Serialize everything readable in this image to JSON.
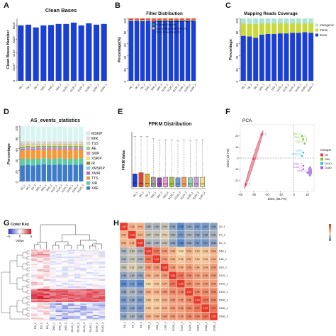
{
  "chart_data": [
    {
      "panel": "A",
      "type": "bar",
      "title": "Clean Bases",
      "ylabel": "Clean Bases Number",
      "ytick_labels": [
        "0",
        "2x10⁷",
        "4x10⁷",
        "6x10⁷",
        "8x10⁷"
      ],
      "ytick_values": [
        0,
        20000000.0,
        40000000.0,
        60000000.0,
        80000000.0
      ],
      "ylim": [
        0,
        90000000.0
      ],
      "categories": [
        "D0_1",
        "D0_2",
        "D0_3",
        "D60_1",
        "D60_2",
        "D60_3",
        "D120_1",
        "D120_2",
        "D120_3",
        "D180_1",
        "D180_2",
        "D180_3"
      ],
      "values": [
        80000000.0,
        81000000.0,
        77000000.0,
        80000000.0,
        80500000.0,
        82000000.0,
        82000000.0,
        84000000.0,
        80000000.0,
        83000000.0,
        81000000.0,
        82000000.0
      ],
      "color": "#1a3fd4"
    },
    {
      "panel": "B",
      "type": "bar",
      "stacked": true,
      "title": "Filter Distribution",
      "ylabel": "Percentage(%)",
      "ytick_labels": [
        "0",
        "20",
        "40",
        "60",
        "80",
        "100"
      ],
      "ytick_values": [
        0,
        20,
        40,
        60,
        80,
        100
      ],
      "ylim": [
        0,
        100
      ],
      "categories": [
        "D0_1",
        "D0_2",
        "D0_3",
        "D60_1",
        "D60_2",
        "D60_3",
        "D120_1",
        "D120_2",
        "D120_3",
        "D180_1",
        "D180_2",
        "D180_3"
      ],
      "series": [
        {
          "name": "Clean Reads Rate(%)",
          "color": "#1a3fd4",
          "values": [
            96.5,
            96.8,
            96.2,
            96.7,
            96.9,
            96.6,
            96.8,
            96.5,
            96.9,
            96.7,
            96.6,
            96.8
          ]
        },
        {
          "name": "Low-quality Reads Rate(%)",
          "color": "#f5d442",
          "values": [
            1.2,
            1.1,
            1.3,
            1.1,
            1.0,
            1.2,
            1.1,
            1.2,
            1.0,
            1.1,
            1.2,
            1.1
          ]
        },
        {
          "name": "N Reads Rate(%)",
          "color": "#2e9a3a",
          "values": [
            0.1,
            0.1,
            0.1,
            0.1,
            0.1,
            0.1,
            0.1,
            0.1,
            0.1,
            0.1,
            0.1,
            0.1
          ]
        },
        {
          "name": "Adapter Polluted Reads Rate(%)",
          "color": "#e0442a",
          "values": [
            2.2,
            2.0,
            2.4,
            2.1,
            2.0,
            2.1,
            2.0,
            2.2,
            2.0,
            2.1,
            2.1,
            2.0
          ]
        }
      ]
    },
    {
      "panel": "C",
      "type": "bar",
      "stacked": true,
      "title": "Mapping Reads Coverage",
      "ylabel": "Percentage",
      "ytick_labels": [
        "0",
        "20",
        "40",
        "60",
        "80",
        "100"
      ],
      "ytick_values": [
        0,
        20,
        40,
        60,
        80,
        100
      ],
      "ylim": [
        0,
        100
      ],
      "categories": [
        "D0_1",
        "D0_2",
        "D0_3",
        "D60_1",
        "D60_2",
        "D60_3",
        "D120_1",
        "D120_2",
        "D120_3",
        "D180_1",
        "D180_2",
        "D180_3"
      ],
      "series": [
        {
          "name": "Exon",
          "color": "#1a3fd4",
          "values": [
            72,
            71,
            69,
            74,
            75,
            75,
            76,
            76,
            77,
            77,
            78,
            77
          ]
        },
        {
          "name": "Intron",
          "color": "#c9d83a",
          "values": [
            20,
            20,
            22,
            18,
            17,
            17,
            16,
            16,
            15,
            15,
            14,
            15
          ]
        },
        {
          "name": "Intergenic",
          "color": "#aee3d6",
          "values": [
            8,
            9,
            9,
            8,
            8,
            8,
            8,
            8,
            8,
            8,
            8,
            8
          ]
        }
      ]
    },
    {
      "panel": "D",
      "type": "bar",
      "stacked": true,
      "title": "AS_events_statistics",
      "ylabel": "Percentage",
      "ytick_labels": [
        "0",
        "20",
        "40",
        "60",
        "80",
        "100"
      ],
      "ytick_values": [
        0,
        20,
        40,
        60,
        80,
        100
      ],
      "ylim": [
        0,
        100
      ],
      "categories": [
        "D0_1",
        "D0_2",
        "D0_3",
        "D60_1",
        "D60_2",
        "D60_3",
        "D120_1",
        "D120_2",
        "D120_3",
        "D180_1",
        "D180_2",
        "D180_3"
      ],
      "series": [
        {
          "name": "XAE",
          "color": "#3d7ac9",
          "values": [
            29,
            30,
            29,
            30,
            31,
            30,
            30,
            31,
            30,
            30,
            30,
            31
          ]
        },
        {
          "name": "XIR",
          "color": "#5fc9a8",
          "values": [
            12,
            11,
            12,
            11,
            11,
            11,
            11,
            11,
            11,
            11,
            11,
            11
          ]
        },
        {
          "name": "TTS",
          "color": "#f59a3a",
          "values": [
            16,
            17,
            16,
            17,
            16,
            17,
            17,
            16,
            17,
            17,
            17,
            16
          ]
        },
        {
          "name": "XMIR",
          "color": "#b56adc",
          "values": [
            2,
            2,
            2,
            2,
            2,
            2,
            2,
            2,
            2,
            2,
            2,
            2
          ]
        },
        {
          "name": "XMSKIP",
          "color": "#7bd1e8",
          "values": [
            2,
            2,
            2,
            2,
            2,
            2,
            2,
            2,
            2,
            2,
            2,
            2
          ]
        },
        {
          "name": "IR",
          "color": "#9a8a2a",
          "values": [
            2,
            2,
            2,
            2,
            2,
            2,
            2,
            2,
            2,
            2,
            2,
            2
          ]
        },
        {
          "name": "XSKIP",
          "color": "#f4e27a",
          "values": [
            2,
            2,
            2,
            2,
            2,
            2,
            2,
            2,
            2,
            2,
            2,
            2
          ]
        },
        {
          "name": "SKIP",
          "color": "#ea8fc0",
          "values": [
            1,
            1,
            1,
            1,
            1,
            1,
            1,
            1,
            1,
            1,
            1,
            1
          ]
        },
        {
          "name": "AE",
          "color": "#8fd97f",
          "values": [
            1,
            1,
            1,
            1,
            1,
            1,
            1,
            1,
            1,
            1,
            1,
            1
          ]
        },
        {
          "name": "TSS",
          "color": "#d2d2d2",
          "values": [
            4,
            4,
            4,
            4,
            4,
            4,
            4,
            4,
            4,
            4,
            4,
            4
          ]
        },
        {
          "name": "MIR",
          "color": "#e7dfd0",
          "values": [
            2,
            2,
            2,
            2,
            2,
            2,
            2,
            2,
            2,
            2,
            2,
            2
          ]
        },
        {
          "name": "MSKIP",
          "color": "#d8f5f3",
          "values": [
            27,
            26,
            27,
            25,
            25,
            25,
            25,
            25,
            25,
            25,
            25,
            25
          ]
        }
      ]
    },
    {
      "panel": "E",
      "type": "box",
      "title": "FPKM Distribution",
      "ylabel": "FPKM Value",
      "categories": [
        "D0_1",
        "D0_2",
        "D0_3",
        "D60_1",
        "D60_2",
        "D60_3",
        "D120_1",
        "D120_2",
        "D120_3",
        "D180_1",
        "D180_2",
        "D180_3"
      ],
      "ylim": [
        0,
        100
      ],
      "boxes": [
        {
          "color": "#1a3fd4",
          "whisker_low": 0,
          "q1": 3,
          "median": 10,
          "q3": 26,
          "whisker_high": 92
        },
        {
          "color": "#e0442a",
          "whisker_low": 0,
          "q1": 3,
          "median": 9,
          "q3": 28,
          "whisker_high": 92
        },
        {
          "color": "#e9a12a",
          "whisker_low": 0,
          "q1": 3,
          "median": 9,
          "q3": 26,
          "whisker_high": 92
        },
        {
          "color": "#a0a0a0",
          "whisker_low": 0,
          "q1": 3,
          "median": 8,
          "q3": 20,
          "whisker_high": 88
        },
        {
          "color": "#8a4ab0",
          "whisker_low": 0,
          "q1": 3,
          "median": 8,
          "q3": 19,
          "whisker_high": 86
        },
        {
          "color": "#e89fcc",
          "whisker_low": 0,
          "q1": 3,
          "median": 8,
          "q3": 20,
          "whisker_high": 86
        },
        {
          "color": "#9fc34a",
          "whisker_low": 0,
          "q1": 3,
          "median": 8,
          "q3": 20,
          "whisker_high": 86
        },
        {
          "color": "#6a9bd8",
          "whisker_low": 0,
          "q1": 3,
          "median": 8,
          "q3": 19,
          "whisker_high": 85
        },
        {
          "color": "#f19a5b",
          "whisker_low": 0,
          "q1": 3,
          "median": 8,
          "q3": 20,
          "whisker_high": 86
        },
        {
          "color": "#8fcfb5",
          "whisker_low": 0,
          "q1": 3,
          "median": 8,
          "q3": 19,
          "whisker_high": 85
        },
        {
          "color": "#c7a0d6",
          "whisker_low": 0,
          "q1": 3,
          "median": 8,
          "q3": 20,
          "whisker_high": 86
        },
        {
          "color": "#f3e28f",
          "whisker_low": 0,
          "q1": 3,
          "median": 8,
          "q3": 20,
          "whisker_high": 86
        }
      ]
    },
    {
      "panel": "F",
      "type": "scatter",
      "title": "PCA",
      "xlabel": "Dim1 (36.7%)",
      "ylabel": "Dim2 (23.7%)",
      "xlim": [
        -40,
        15
      ],
      "ylim": [
        -30,
        30
      ],
      "xtick_values": [
        -40,
        -30,
        -20,
        -10,
        0,
        10
      ],
      "ytick_values": [
        -20,
        -10,
        0,
        10,
        20
      ],
      "legend_title": "Groups",
      "legend_position": "right",
      "groups": [
        {
          "name": "D0",
          "color": "#e03c5a"
        },
        {
          "name": "D60",
          "color": "#7ac23a"
        },
        {
          "name": "D120",
          "color": "#2fc0c0"
        },
        {
          "name": "D180",
          "color": "#a65be0"
        }
      ],
      "points": [
        {
          "label": "D0_1",
          "group": "D0",
          "x": -24,
          "y": 21
        },
        {
          "label": "D0_2",
          "group": "D0",
          "x": -30,
          "y": -1
        },
        {
          "label": "D0_3",
          "group": "D0",
          "x": -36,
          "y": -24
        },
        {
          "label": "D60_3",
          "group": "D60",
          "x": 6,
          "y": 20
        },
        {
          "label": "D60_2",
          "group": "D60",
          "x": 7,
          "y": 17
        },
        {
          "label": "D60_1",
          "group": "D60",
          "x": 8,
          "y": 13
        },
        {
          "label": "D120",
          "group": "D120",
          "x": 7,
          "y": 5
        },
        {
          "label": "D120_3",
          "group": "D120",
          "x": 6,
          "y": 2
        },
        {
          "label": "D180_2",
          "group": "D180",
          "x": 7,
          "y": -7
        },
        {
          "label": "D180_1",
          "group": "D180",
          "x": 7,
          "y": -10
        },
        {
          "label": "D180_3",
          "group": "D180",
          "x": 10,
          "y": -13
        }
      ]
    },
    {
      "panel": "G",
      "type": "heatmap",
      "key_title": "Color Key",
      "key_xlabel": "Value",
      "key_tick_labels": [
        "−5",
        "0",
        "5"
      ],
      "key_tick_values": [
        -5,
        0,
        5
      ],
      "columns": [
        "D0_1",
        "D0_2",
        "D0_3",
        "D60_1",
        "D60_2",
        "D60_3",
        "D120_1",
        "D120_2",
        "D120_3",
        "D180_1",
        "D180_2",
        "D180_3"
      ]
    },
    {
      "panel": "H",
      "type": "heatmap",
      "labels": [
        "D0_1",
        "D0_2",
        "D0_3",
        "D60_1",
        "D60_2",
        "D60_3",
        "D120_1",
        "D120_2",
        "D120_3",
        "D180_1",
        "D180_2",
        "D180_3"
      ],
      "color_scale": [
        "#2b6fd6",
        "#f6d9a8",
        "#e83a2a"
      ],
      "matrix": [
        [
          1.0,
          0.94,
          0.94,
          0.89,
          0.89,
          0.9,
          0.88,
          0.86,
          0.88,
          0.87,
          0.87,
          0.88
        ],
        [
          0.94,
          1.0,
          0.94,
          0.9,
          0.9,
          0.91,
          0.89,
          0.87,
          0.89,
          0.88,
          0.88,
          0.89
        ],
        [
          0.94,
          0.94,
          1.0,
          0.89,
          0.89,
          0.9,
          0.88,
          0.86,
          0.88,
          0.87,
          0.87,
          0.88
        ],
        [
          0.89,
          0.9,
          0.89,
          1.0,
          0.97,
          0.95,
          0.94,
          0.92,
          0.94,
          0.93,
          0.93,
          0.94
        ],
        [
          0.89,
          0.9,
          0.89,
          0.97,
          1.0,
          0.95,
          0.94,
          0.93,
          0.94,
          0.93,
          0.93,
          0.94
        ],
        [
          0.9,
          0.91,
          0.9,
          0.95,
          0.95,
          1.0,
          0.95,
          0.94,
          0.95,
          0.94,
          0.94,
          0.95
        ],
        [
          0.88,
          0.89,
          0.88,
          0.94,
          0.94,
          0.95,
          1.0,
          0.97,
          0.96,
          0.95,
          0.95,
          0.95
        ],
        [
          0.86,
          0.87,
          0.86,
          0.92,
          0.93,
          0.94,
          0.97,
          1.0,
          0.96,
          0.95,
          0.95,
          0.95
        ],
        [
          0.88,
          0.89,
          0.88,
          0.94,
          0.94,
          0.95,
          0.96,
          0.96,
          1.0,
          0.96,
          0.96,
          0.96
        ],
        [
          0.87,
          0.88,
          0.87,
          0.93,
          0.93,
          0.94,
          0.95,
          0.95,
          0.96,
          1.0,
          0.97,
          0.96
        ],
        [
          0.87,
          0.88,
          0.87,
          0.93,
          0.93,
          0.94,
          0.95,
          0.95,
          0.96,
          0.97,
          1.0,
          0.97
        ],
        [
          0.88,
          0.89,
          0.88,
          0.94,
          0.94,
          0.95,
          0.95,
          0.95,
          0.96,
          0.96,
          0.97,
          1.0
        ]
      ]
    }
  ]
}
